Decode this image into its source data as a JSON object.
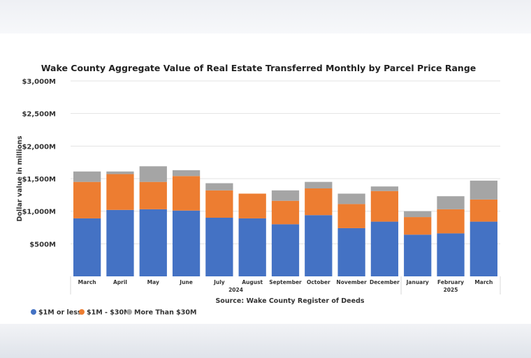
{
  "chart_data": {
    "type": "bar",
    "stacked": true,
    "title": "Wake County Aggregate Value of Real Estate Transferred Monthly by Parcel Price Range",
    "ylabel": "Dollar value in millions",
    "xlabel": "Source: Wake County Register of Deeds",
    "ylim": [
      0,
      3000
    ],
    "yticks": [
      {
        "value": 500,
        "label": "$500M"
      },
      {
        "value": 1000,
        "label": "$1,000M"
      },
      {
        "value": 1500,
        "label": "$1,500M"
      },
      {
        "value": 2000,
        "label": "$2,000M"
      },
      {
        "value": 2500,
        "label": "$2,500M"
      },
      {
        "value": 3000,
        "label": "$3,000M"
      }
    ],
    "grid": true,
    "legend_position": "bottom-left",
    "categories": [
      "March",
      "April",
      "May",
      "June",
      "July",
      "August",
      "September",
      "October",
      "November",
      "December",
      "January",
      "February",
      "March"
    ],
    "year_groups": [
      {
        "label": "2024",
        "start": 0,
        "end": 9
      },
      {
        "label": "2025",
        "start": 10,
        "end": 12
      }
    ],
    "series": [
      {
        "name": "$1M or less",
        "color": "#4472c4",
        "values": [
          890,
          1020,
          1030,
          1010,
          900,
          890,
          800,
          940,
          740,
          840,
          640,
          660,
          840
        ]
      },
      {
        "name": "$1M - $30M",
        "color": "#ed7d31",
        "values": [
          560,
          550,
          420,
          530,
          420,
          380,
          360,
          410,
          370,
          470,
          270,
          370,
          340
        ]
      },
      {
        "name": "More Than $30M",
        "color": "#a5a5a5",
        "values": [
          160,
          40,
          240,
          90,
          110,
          0,
          160,
          100,
          160,
          70,
          90,
          200,
          290
        ]
      }
    ]
  }
}
